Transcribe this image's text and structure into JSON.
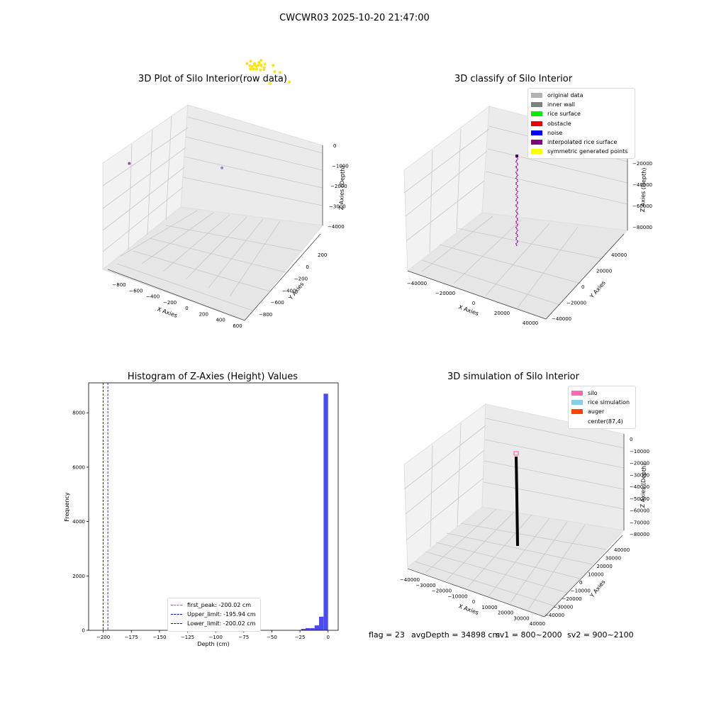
{
  "suptitle": "CWCWR03 2025-10-20 21:47:00",
  "colors": {
    "pane_light": "#f2f2f2",
    "pane_mid": "#ebebeb",
    "pane_dark": "#e6e6e6",
    "grid": "#c8c8c8",
    "raw_points": "#f5e41a",
    "hist_bar": "#4b4bf0"
  },
  "chart_data": [
    {
      "type": "scatter",
      "title": "3D Plot of Silo Interior(row data)",
      "xlabel": "X Axies",
      "ylabel": "Y Axies",
      "zlabel": "Z Axies (Depth)",
      "x_ticks": [
        "−800",
        "−600",
        "−400",
        "−200",
        "0",
        "200",
        "400",
        "600"
      ],
      "y_ticks": [
        "200",
        "0",
        "−200",
        "−400",
        "−600",
        "−800"
      ],
      "z_ticks": [
        "0",
        "−1000",
        "−2000",
        "−3000",
        "−4000"
      ],
      "xlim": [
        -900,
        650
      ],
      "ylim": [
        -900,
        300
      ],
      "zlim": [
        -4500,
        300
      ],
      "series": [
        {
          "color": "#f5e41a",
          "points": [
            [
              10,
              150,
              -80
            ],
            [
              40,
              180,
              -100
            ],
            [
              -20,
              120,
              -150
            ],
            [
              60,
              140,
              -60
            ],
            [
              80,
              160,
              -130
            ],
            [
              30,
              110,
              -200
            ],
            [
              -40,
              160,
              -90
            ],
            [
              100,
              120,
              -170
            ],
            [
              20,
              90,
              -120
            ],
            [
              50,
              200,
              -40
            ],
            [
              0,
              170,
              -220
            ],
            [
              70,
              100,
              -90
            ],
            [
              -10,
              140,
              -260
            ],
            [
              120,
              150,
              -110
            ],
            [
              90,
              200,
              -180
            ],
            [
              -60,
              130,
              -140
            ],
            [
              140,
              120,
              -60
            ],
            [
              45,
              130,
              -90
            ],
            [
              15,
              145,
              -140
            ],
            [
              65,
              175,
              -170
            ],
            [
              200,
              180,
              40
            ],
            [
              240,
              150,
              -120
            ],
            [
              300,
              150,
              -50
            ],
            [
              420,
              130,
              -300
            ],
            [
              -80,
              210,
              -860
            ],
            [
              200,
              130,
              -820
            ]
          ]
        },
        {
          "color": "#9a7fd6",
          "points": [
            [
              0,
              -350,
              -4200
            ]
          ]
        },
        {
          "color": "#9b4fa8",
          "points": [
            [
              -800,
              -700,
              -4000
            ]
          ]
        }
      ]
    },
    {
      "type": "scatter",
      "title": "3D classify of Silo Interior",
      "xlabel": "X Axies",
      "ylabel": "Y Axies",
      "zlabel": "Z Axies (Depth)",
      "x_ticks": [
        "−40000",
        "−20000",
        "0",
        "20000",
        "40000"
      ],
      "y_ticks": [
        "40000",
        "20000",
        "0",
        "−20000",
        "−40000"
      ],
      "z_ticks": [
        "0",
        "−20000",
        "−40000",
        "−60000",
        "−80000"
      ],
      "legend": [
        {
          "label": "original data",
          "color": "#b3b3b3"
        },
        {
          "label": "inner wall",
          "color": "#808080"
        },
        {
          "label": "rice surface",
          "color": "#00ee00"
        },
        {
          "label": "obstacle",
          "color": "#ee0000"
        },
        {
          "label": "noise",
          "color": "#0000ee"
        },
        {
          "label": "interpolated rice surface",
          "color": "#800080"
        },
        {
          "label": "symmetric generated points",
          "color": "#ffff00"
        }
      ]
    },
    {
      "type": "bar",
      "title": "Histogram of Z-Axies (Height) Values",
      "xlabel": "Depth (cm)",
      "ylabel": "Frequency",
      "xlim": [
        -213,
        9
      ],
      "ylim": [
        0,
        9100
      ],
      "x_ticks": [
        "−200",
        "−175",
        "−150",
        "−125",
        "−100",
        "−75",
        "−50",
        "−25",
        "0"
      ],
      "y_ticks": [
        "0",
        "2000",
        "4000",
        "6000",
        "8000"
      ],
      "bin_width": 4,
      "bins": [
        {
          "x": -24,
          "count": 50
        },
        {
          "x": -20,
          "count": 80
        },
        {
          "x": -16,
          "count": 80
        },
        {
          "x": -12,
          "count": 180
        },
        {
          "x": -8,
          "count": 500
        },
        {
          "x": -4,
          "count": 8700
        }
      ],
      "vlines": [
        {
          "x": -200.02,
          "label": "first_peak: -200.02 cm",
          "color": "#e74c3c"
        },
        {
          "x": -195.94,
          "label": "Upper_limit: -195.94 cm",
          "color": "#0000cc"
        },
        {
          "x": -200.02,
          "label": "Lower_limit: -200.02 cm",
          "color": "#0000cc"
        }
      ]
    },
    {
      "type": "scatter",
      "title": "3D simulation of Silo Interior",
      "xlabel": "X Axies",
      "ylabel": "Y Axies",
      "zlabel": "Z Axies (Depth)",
      "x_ticks": [
        "−40000",
        "−30000",
        "−20000",
        "−10000",
        "0",
        "10000",
        "20000",
        "30000",
        "40000"
      ],
      "y_ticks": [
        "40000",
        "30000",
        "20000",
        "10000",
        "0",
        "−10000",
        "−20000",
        "−30000",
        "−40000"
      ],
      "z_ticks": [
        "0",
        "−10000",
        "−20000",
        "−30000",
        "−40000",
        "−50000",
        "−60000",
        "−70000",
        "−80000"
      ],
      "legend": [
        {
          "label": "silo",
          "color": "#ff69b4"
        },
        {
          "label": "rice simulation",
          "color": "#87ceeb"
        },
        {
          "label": "auger",
          "color": "#ff4500"
        },
        {
          "label": "center(87,4)",
          "color": "transparent"
        }
      ]
    }
  ],
  "status": {
    "flag": "flag = 23",
    "avg_depth": "avgDepth = 34898 cm",
    "sv1": "sv1 = 800~2000",
    "sv2": "sv2 = 900~2100"
  }
}
